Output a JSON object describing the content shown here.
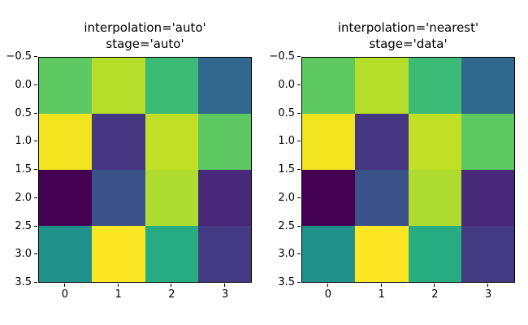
{
  "figure": {
    "background": "#ffffff",
    "spine_color": "#000000",
    "colormap": "viridis"
  },
  "chart_data": [
    {
      "type": "heatmap",
      "title": "interpolation='auto'\nstage='auto'",
      "title_lines": [
        "interpolation='auto'",
        "stage='auto'"
      ],
      "x_ticks": [
        "0",
        "1",
        "2",
        "3"
      ],
      "y_ticks": [
        "−0.5",
        "0.0",
        "0.5",
        "1.0",
        "1.5",
        "2.0",
        "2.5",
        "3.0",
        "3.5"
      ],
      "x_range": [
        -0.5,
        3.5
      ],
      "y_range": [
        -0.5,
        3.5
      ],
      "grid": false,
      "legend": false,
      "rows": 4,
      "cols": 4,
      "values_normalized_estimate": [
        [
          0.73,
          0.8,
          0.64,
          0.3
        ],
        [
          0.95,
          0.16,
          0.82,
          0.73
        ],
        [
          0.0,
          0.22,
          0.78,
          0.1
        ],
        [
          0.5,
          1.0,
          0.58,
          0.17
        ]
      ],
      "cell_colors": [
        [
          "#5ec962",
          "#b5de2b",
          "#3bbb75",
          "#31688e"
        ],
        [
          "#f2e51f",
          "#453781",
          "#c0df25",
          "#5ec962"
        ],
        [
          "#440154",
          "#3b528b",
          "#aedc30",
          "#482878"
        ],
        [
          "#21918c",
          "#fde725",
          "#27ad81",
          "#443983"
        ]
      ]
    },
    {
      "type": "heatmap",
      "title": "interpolation='nearest'\nstage='data'",
      "title_lines": [
        "interpolation='nearest'",
        "stage='data'"
      ],
      "x_ticks": [
        "0",
        "1",
        "2",
        "3"
      ],
      "y_ticks": [
        "−0.5",
        "0.0",
        "0.5",
        "1.0",
        "1.5",
        "2.0",
        "2.5",
        "3.0",
        "3.5"
      ],
      "x_range": [
        -0.5,
        3.5
      ],
      "y_range": [
        -0.5,
        3.5
      ],
      "grid": false,
      "legend": false,
      "rows": 4,
      "cols": 4,
      "values_normalized_estimate": [
        [
          0.73,
          0.8,
          0.64,
          0.3
        ],
        [
          0.95,
          0.16,
          0.82,
          0.73
        ],
        [
          0.0,
          0.22,
          0.78,
          0.1
        ],
        [
          0.5,
          1.0,
          0.58,
          0.17
        ]
      ],
      "cell_colors": [
        [
          "#5ec962",
          "#b5de2b",
          "#3bbb75",
          "#31688e"
        ],
        [
          "#f2e51f",
          "#453781",
          "#c0df25",
          "#5ec962"
        ],
        [
          "#440154",
          "#3b528b",
          "#aedc30",
          "#482878"
        ],
        [
          "#21918c",
          "#fde725",
          "#27ad81",
          "#443983"
        ]
      ]
    }
  ]
}
